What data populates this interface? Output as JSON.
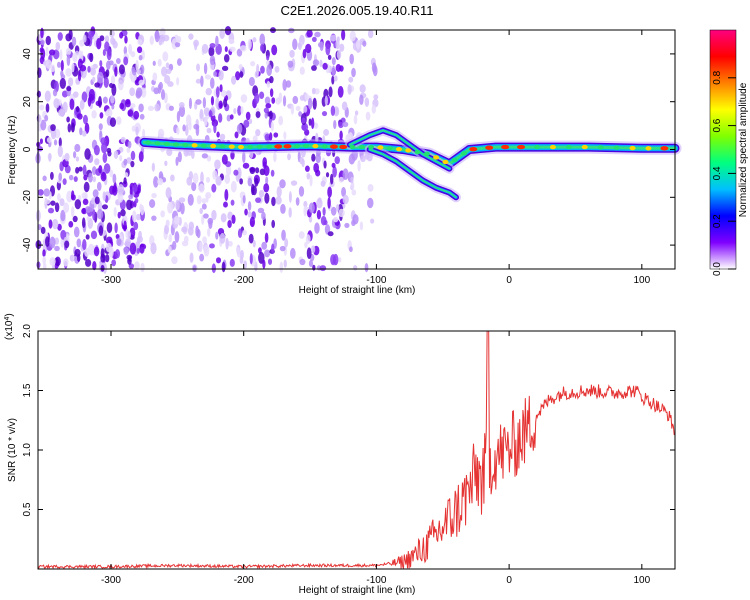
{
  "title": "C2E1.2026.005.19.40.R11",
  "chart_data": [
    {
      "type": "heatmap",
      "name": "spectrogram",
      "xlabel": "Height of straight line (km)",
      "ylabel": "Frequency (Hz)",
      "xlim": [
        -355,
        125
      ],
      "ylim": [
        -50,
        50
      ],
      "xticks": [
        -300,
        -200,
        -100,
        0,
        100
      ],
      "yticks": [
        -40,
        -20,
        0,
        20,
        40
      ],
      "description": "noise speckles below about -100 km; tonal line near 0 Hz from -275 km to 125 km, splitting into two diverging branches between -100 km and -35 km",
      "colorbar": {
        "label": "Normalized spectral amplitude",
        "range": [
          0,
          1
        ],
        "ticks": [
          0.0,
          0.2,
          0.4,
          0.6,
          0.8
        ],
        "tick_labels": [
          "0.0",
          "0.2",
          "0.4",
          "0.6",
          "0.8"
        ],
        "colormap": [
          "#ffffff",
          "#7f00ff",
          "#0000ff",
          "#00c0ff",
          "#00ff80",
          "#80ff00",
          "#ffff00",
          "#ff8000",
          "#ff0000",
          "#ff0080"
        ]
      },
      "branches": [
        {
          "name": "main-line",
          "x": [
            -275,
            -250,
            -200,
            -150,
            -120,
            -100,
            -80,
            -60,
            -45,
            -30,
            -10,
            20,
            60,
            100,
            125
          ],
          "freq": [
            3,
            2,
            1,
            1.5,
            1,
            1,
            0,
            -2,
            -6,
            0,
            1,
            1,
            1,
            0.5,
            0.5
          ]
        },
        {
          "name": "upper-branch",
          "x": [
            -120,
            -105,
            -95,
            -85,
            -75,
            -65,
            -55,
            -45
          ],
          "freq": [
            2,
            6,
            8,
            6,
            2,
            -2,
            -5,
            -8
          ]
        },
        {
          "name": "lower-branch",
          "x": [
            -105,
            -95,
            -85,
            -75,
            -65,
            -55,
            -45,
            -40
          ],
          "freq": [
            0,
            -2,
            -5,
            -9,
            -13,
            -16,
            -18,
            -20
          ]
        }
      ]
    },
    {
      "type": "line",
      "name": "snr",
      "xlabel": "Height of straight line (km)",
      "ylabel": "SNR (10 * v/v)",
      "multiplier": "(x10",
      "multiplier_exp": "4",
      "multiplier_close": ")",
      "xlim": [
        -355,
        125
      ],
      "ylim": [
        0,
        2.0
      ],
      "xticks": [
        -300,
        -200,
        -100,
        0,
        100
      ],
      "yticks": [
        0.5,
        1.0,
        1.5,
        2.0
      ],
      "ytick_labels": [
        "0.5",
        "1.0",
        "1.5",
        "2.0"
      ],
      "color": "#e53333",
      "x": [
        -355,
        -300,
        -250,
        -200,
        -150,
        -120,
        -100,
        -80,
        -70,
        -60,
        -50,
        -40,
        -30,
        -25,
        -20,
        -15,
        -10,
        0,
        10,
        20,
        30,
        40,
        60,
        80,
        95,
        100,
        110,
        120,
        125
      ],
      "y": [
        0.02,
        0.02,
        0.03,
        0.02,
        0.03,
        0.03,
        0.03,
        0.06,
        0.12,
        0.22,
        0.35,
        0.48,
        0.65,
        0.8,
        0.75,
        0.9,
        0.95,
        1.0,
        1.12,
        1.28,
        1.42,
        1.48,
        1.5,
        1.48,
        1.5,
        1.45,
        1.38,
        1.3,
        1.15
      ]
    }
  ]
}
